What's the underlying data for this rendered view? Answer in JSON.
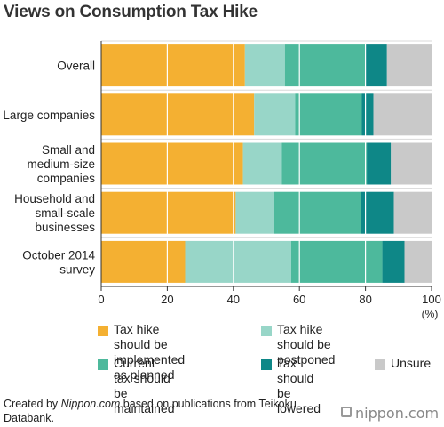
{
  "chart_data": {
    "type": "bar",
    "orientation": "horizontal",
    "stacked": true,
    "title": "Views on Consumption Tax Hike",
    "categories": [
      "Overall",
      "Large companies",
      "Small and\nmedium-size\ncompanies",
      "Household and\nsmall-scale\nbusinesses",
      "October 2014\nsurvey"
    ],
    "series": [
      {
        "name": "Tax hike should be\nimplemented as planned",
        "values": [
          43.5,
          46.3,
          42.9,
          40.7,
          25.4
        ]
      },
      {
        "name": "Tax hike should be\npostponed",
        "values": [
          12.1,
          12.4,
          11.8,
          11.7,
          32.1
        ]
      },
      {
        "name": "Current tax should\nbe maintained",
        "values": [
          24.5,
          20.2,
          25.7,
          26.3,
          27.6
        ]
      },
      {
        "name": "Tax should\nbe lowered",
        "values": [
          6.4,
          3.5,
          7.3,
          9.9,
          6.7
        ]
      },
      {
        "name": "Unsure",
        "values": [
          13.5,
          17.6,
          12.3,
          11.4,
          8.2
        ]
      }
    ],
    "xlim": [
      0,
      100
    ],
    "xticks": [
      "0",
      "20",
      "40",
      "60",
      "80",
      "100"
    ],
    "xunit": "(%)",
    "grid": true,
    "legend_position": "bottom"
  },
  "colors": [
    "#F4B032",
    "#98D6C8",
    "#4DB99C",
    "#0E8787",
    "#C9C9C9"
  ],
  "footer": {
    "prefix": "Created by ",
    "source": "Nippon.com",
    "suffix": " based on publications from Teikoku Databank."
  },
  "brand": "nippon.com"
}
